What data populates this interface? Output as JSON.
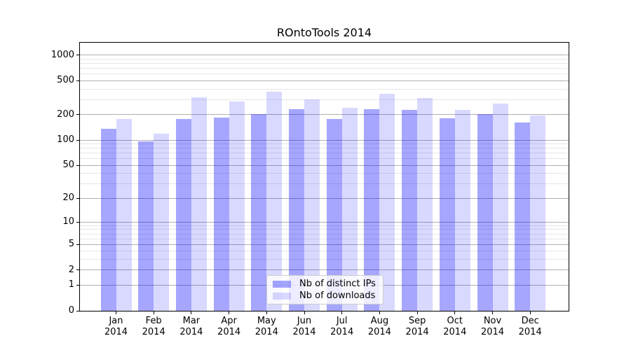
{
  "figure": {
    "title": "ROntoTools 2014"
  },
  "chart_data": {
    "type": "bar",
    "title": "ROntoTools 2014",
    "categories": [
      "Jan",
      "Feb",
      "Mar",
      "Apr",
      "May",
      "Jun",
      "Jul",
      "Aug",
      "Sep",
      "Oct",
      "Nov",
      "Dec"
    ],
    "x_sublabel": "2014",
    "series": [
      {
        "name": "Nb of distinct IPs",
        "color": "rgba(0,0,255,0.35)",
        "values": [
          135,
          97,
          178,
          184,
          202,
          232,
          176,
          232,
          228,
          180,
          204,
          161
        ]
      },
      {
        "name": "Nb of downloads",
        "color": "rgba(0,0,255,0.15)",
        "values": [
          178,
          120,
          319,
          284,
          372,
          304,
          243,
          354,
          314,
          226,
          268,
          197
        ]
      }
    ],
    "yscale": "log1p",
    "ylim": [
      0,
      1403
    ],
    "yticks": [
      0,
      1,
      2,
      5,
      10,
      20,
      50,
      100,
      200,
      500,
      1000
    ],
    "yticks_minor": [
      3,
      4,
      6,
      7,
      8,
      9,
      30,
      40,
      60,
      70,
      80,
      90,
      300,
      400,
      600,
      700,
      800,
      900
    ],
    "grid": true,
    "legend": {
      "position": "lower-center",
      "entries": [
        "Nb of distinct IPs",
        "Nb of downloads"
      ]
    }
  }
}
